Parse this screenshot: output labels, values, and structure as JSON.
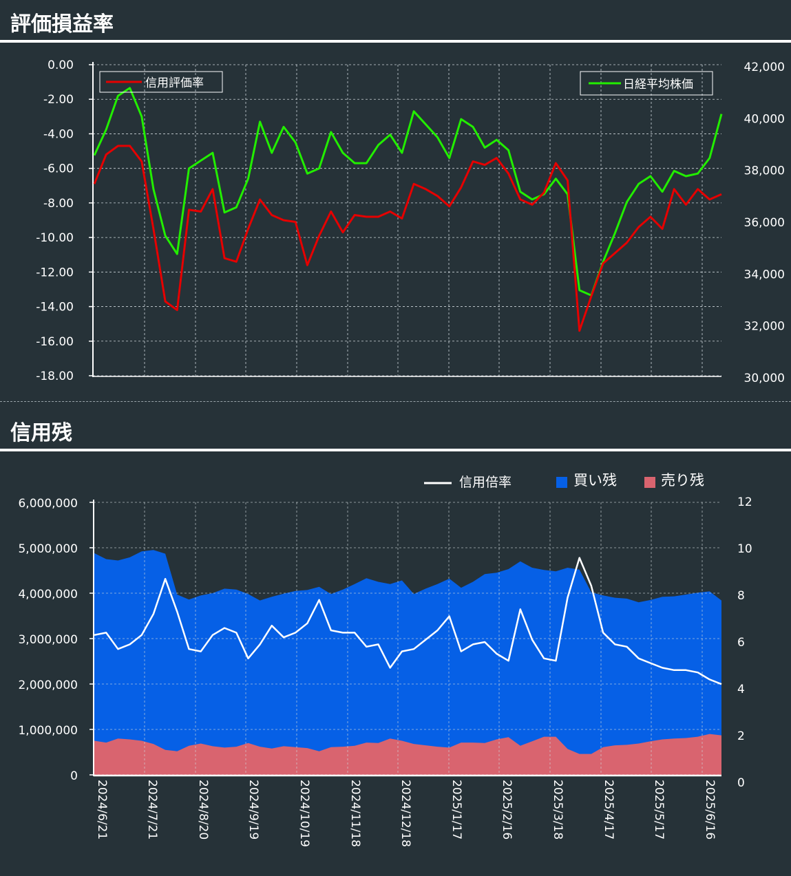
{
  "sections": {
    "profit_title": "評価損益率",
    "balance_title": "信用残"
  },
  "colors": {
    "background": "#263238",
    "margin_rate": "#e60000",
    "nikkei": "#22ee00",
    "credit_ratio": "#ffffff",
    "buy_balance": "#0660e6",
    "sell_balance": "#d9646f"
  },
  "chart_data": [
    {
      "type": "line",
      "title": "評価損益率",
      "series": [
        {
          "name": "信用評価率",
          "axis": "left",
          "values": [
            -6.9,
            -5.2,
            -4.7,
            -4.7,
            -5.6,
            -9.5,
            -13.7,
            -14.2,
            -8.4,
            -8.5,
            -7.2,
            -11.2,
            -11.4,
            -9.5,
            -7.8,
            -8.7,
            -9.0,
            -9.1,
            -11.6,
            -9.9,
            -8.5,
            -9.7,
            -8.7,
            -8.8,
            -8.8,
            -8.5,
            -8.9,
            -6.9,
            -7.2,
            -7.6,
            -8.2,
            -7.1,
            -5.6,
            -5.8,
            -5.4,
            -6.3,
            -7.8,
            -8.1,
            -7.4,
            -5.7,
            -6.7,
            -15.4,
            -13.4,
            -11.5,
            -10.9,
            -10.3,
            -9.4,
            -8.8,
            -9.5,
            -7.2,
            -8.1,
            -7.2,
            -7.8,
            -7.5
          ]
        },
        {
          "name": "日経平均株価",
          "axis": "right",
          "values": [
            38500,
            39500,
            40800,
            41100,
            40000,
            37200,
            35400,
            34700,
            38000,
            38300,
            38600,
            36300,
            36500,
            37600,
            39800,
            38600,
            39600,
            39000,
            37800,
            38000,
            39400,
            38600,
            38200,
            38200,
            38900,
            39300,
            38600,
            40200,
            39700,
            39200,
            38400,
            39900,
            39600,
            38800,
            39100,
            38700,
            37100,
            36800,
            37000,
            37600,
            37000,
            33300,
            33100,
            34400,
            35500,
            36700,
            37400,
            37700,
            37100,
            37900,
            37700,
            37800,
            38400,
            40100
          ]
        }
      ],
      "y_left": {
        "ticks": [
          "0.00",
          "-2.00",
          "-4.00",
          "-6.00",
          "-8.00",
          "-10.00",
          "-12.00",
          "-14.00",
          "-16.00",
          "-18.00"
        ],
        "range": [
          -18,
          0
        ]
      },
      "y_right": {
        "ticks": [
          "42,000",
          "40,000",
          "38,000",
          "36,000",
          "34,000",
          "32,000",
          "30,000"
        ],
        "range": [
          30000,
          42000
        ]
      },
      "grid": true,
      "legend": [
        "top-left",
        "top-right"
      ]
    },
    {
      "type": "area",
      "title": "信用残",
      "x_ticks": [
        "2024/6/21",
        "2024/7/21",
        "2024/8/20",
        "2024/9/19",
        "2024/10/19",
        "2024/11/18",
        "2024/12/18",
        "2025/1/17",
        "2025/2/16",
        "2025/3/18",
        "2025/4/17",
        "2025/5/17",
        "2025/6/16"
      ],
      "series": [
        {
          "name": "信用倍率",
          "type": "line",
          "axis": "right",
          "values": [
            6.3,
            6.4,
            5.7,
            5.9,
            6.3,
            7.2,
            8.7,
            7.3,
            5.7,
            5.6,
            6.3,
            6.6,
            6.4,
            5.3,
            5.9,
            6.7,
            6.2,
            6.4,
            6.8,
            7.8,
            6.5,
            6.4,
            6.4,
            5.8,
            5.9,
            4.9,
            5.6,
            5.7,
            6.1,
            6.5,
            7.1,
            5.6,
            5.9,
            6.0,
            5.5,
            5.2,
            7.4,
            6.1,
            5.3,
            5.2,
            7.9,
            9.6,
            8.4,
            6.4,
            5.9,
            5.8,
            5.3,
            5.1,
            4.9,
            4.8,
            4.8,
            4.7,
            4.4,
            4.2
          ]
        },
        {
          "name": "買い残",
          "type": "area",
          "axis": "left",
          "values": [
            4880000,
            4750000,
            4720000,
            4790000,
            4920000,
            4950000,
            4870000,
            3970000,
            3860000,
            3950000,
            4000000,
            4100000,
            4080000,
            3980000,
            3840000,
            3920000,
            3990000,
            4050000,
            4070000,
            4140000,
            3980000,
            4080000,
            4200000,
            4330000,
            4250000,
            4200000,
            4280000,
            3980000,
            4100000,
            4200000,
            4320000,
            4120000,
            4250000,
            4420000,
            4450000,
            4530000,
            4700000,
            4560000,
            4510000,
            4480000,
            4560000,
            4520000,
            4020000,
            3950000,
            3900000,
            3880000,
            3800000,
            3850000,
            3920000,
            3930000,
            3970000,
            4010000,
            4040000,
            3840000
          ]
        },
        {
          "name": "売り残",
          "type": "area",
          "axis": "left",
          "values": [
            750000,
            710000,
            800000,
            780000,
            750000,
            680000,
            550000,
            520000,
            640000,
            690000,
            630000,
            600000,
            620000,
            700000,
            620000,
            580000,
            630000,
            610000,
            590000,
            520000,
            610000,
            620000,
            640000,
            710000,
            700000,
            800000,
            750000,
            680000,
            650000,
            620000,
            600000,
            710000,
            710000,
            700000,
            780000,
            830000,
            640000,
            740000,
            840000,
            840000,
            570000,
            460000,
            460000,
            610000,
            650000,
            660000,
            690000,
            740000,
            780000,
            800000,
            810000,
            840000,
            900000,
            870000
          ]
        }
      ],
      "y_left": {
        "ticks": [
          "6,000,000",
          "5,000,000",
          "4,000,000",
          "3,000,000",
          "2,000,000",
          "1,000,000",
          "0"
        ],
        "range": [
          0,
          6000000
        ]
      },
      "y_right": {
        "ticks": [
          "12",
          "10",
          "8",
          "6",
          "4",
          "2",
          "0"
        ],
        "range": [
          0,
          12
        ]
      },
      "grid": true,
      "legend": "top-right"
    }
  ]
}
